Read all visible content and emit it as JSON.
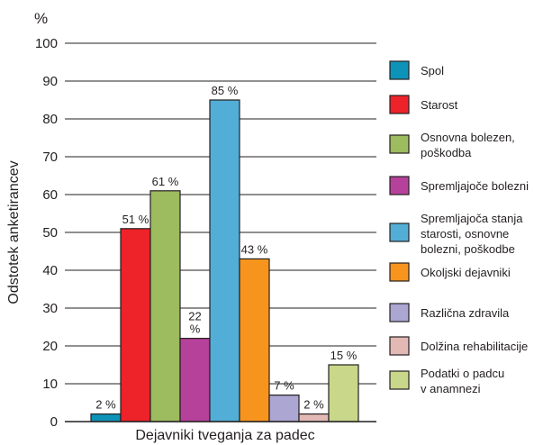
{
  "chart_data": {
    "type": "bar",
    "ylabel": "Odstotek anketirancev",
    "y_unit": "%",
    "xlabel": "Dejavniki tveganja za padec",
    "ylim": [
      0,
      100
    ],
    "yticks": [
      0,
      10,
      20,
      30,
      40,
      50,
      60,
      70,
      80,
      90,
      100
    ],
    "grid": true,
    "legend_position": "right",
    "categories": [
      "Spol",
      "Starost",
      "Osnovna bolezen, poškodba",
      "Spremljajoče bolezni",
      "Spremljajoča stanja starosti, osnovne bolezni, poškodbe",
      "Okoljski dejavniki",
      "Različna zdravila",
      "Dolžina rehabilitacije",
      "Podatki o padcu v anamnezi"
    ],
    "legend_lines": [
      [
        "Spol"
      ],
      [
        "Starost"
      ],
      [
        "Osnovna bolezen,",
        "poškodba"
      ],
      [
        "Spremljajoče bolezni"
      ],
      [
        "Spremljajoča stanja",
        "starosti, osnovne",
        "bolezni, poškodbe"
      ],
      [
        "Okoljski dejavniki"
      ],
      [
        "Različna zdravila"
      ],
      [
        "Dolžina rehabilitacije"
      ],
      [
        "Podatki o padcu",
        "v anamnezi"
      ]
    ],
    "values": [
      2,
      51,
      61,
      22,
      85,
      43,
      7,
      2,
      15
    ],
    "data_labels": [
      [
        "2 %"
      ],
      [
        "51 %"
      ],
      [
        "61 %"
      ],
      [
        "22",
        "%"
      ],
      [
        "85 %"
      ],
      [
        "43 %"
      ],
      [
        "7 %"
      ],
      [
        "2 %"
      ],
      [
        "15 %"
      ]
    ],
    "colors": [
      "#0d93b8",
      "#ee2229",
      "#9dbb5f",
      "#b5419a",
      "#52aed6",
      "#f7941d",
      "#aba6d2",
      "#e3b9b5",
      "#c8d78a"
    ]
  }
}
